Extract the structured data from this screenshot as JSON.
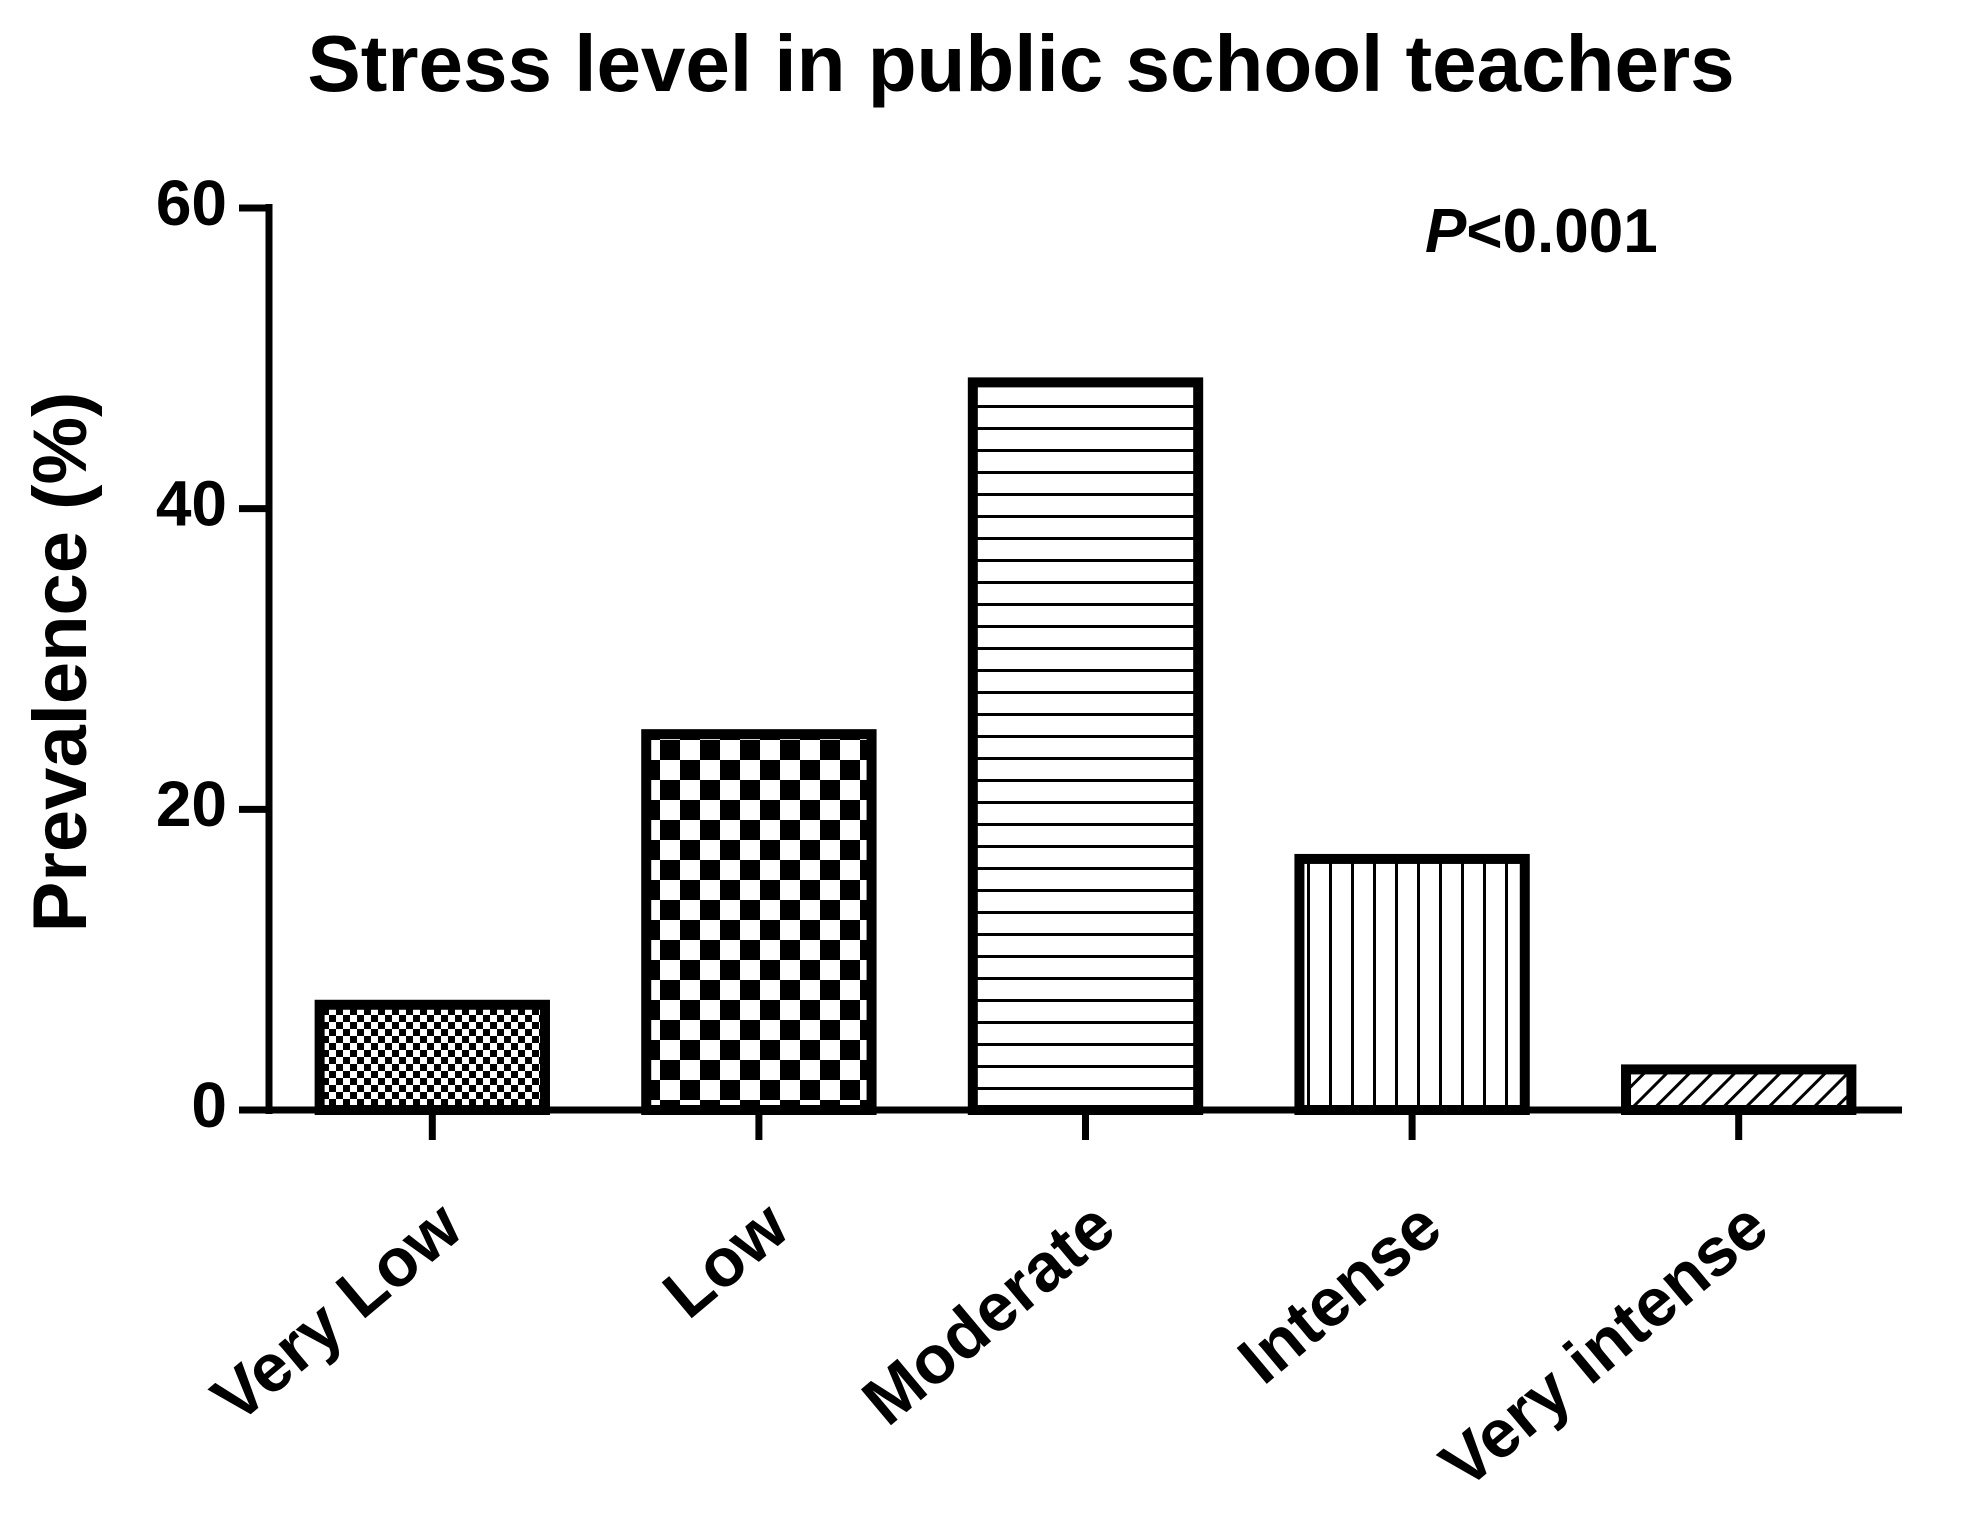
{
  "chart_data": {
    "type": "bar",
    "title": "Stress level in public school teachers",
    "y_label": "Prevalence (%)",
    "annotation": "P<0.001",
    "categories": [
      "Very Low",
      "Low",
      "Moderate",
      "Intense",
      "Very intense"
    ],
    "values": [
      7,
      25,
      48.4,
      16.7,
      2.7
    ],
    "color": "#000000",
    "ylim": [
      0,
      60
    ],
    "yticks": [
      0,
      20,
      40,
      60
    ],
    "grid": false
  }
}
